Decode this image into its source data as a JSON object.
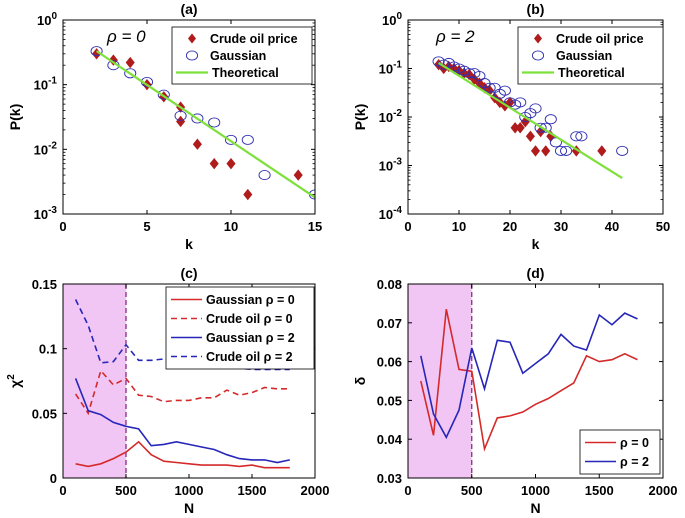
{
  "colors": {
    "crude_marker": "#b01c1c",
    "gaussian_marker": "#2f2fb0",
    "theoretical_line": "#7ee03a",
    "red_line": "#d42a2a",
    "blue_line": "#2626b8",
    "shade": "#f1c6f5",
    "divider": "#8a2a8a"
  },
  "chart_data": [
    {
      "id": "a",
      "type": "scatter",
      "title": "(a)",
      "annotation": "ρ = 0",
      "xlabel": "k",
      "ylabel": "P(k)",
      "xlim": [
        0,
        15
      ],
      "ylim": [
        0.001,
        1
      ],
      "yscale": "log",
      "xticks": [
        0,
        5,
        10,
        15
      ],
      "yticks": [
        {
          "value": 1,
          "base": "10",
          "exp": "0"
        },
        {
          "value": 0.1,
          "base": "10",
          "exp": "-1"
        },
        {
          "value": 0.01,
          "base": "10",
          "exp": "-2"
        },
        {
          "value": 0.001,
          "base": "10",
          "exp": "-3"
        }
      ],
      "legend_position": "top-right",
      "series": [
        {
          "name": "Crude oil price",
          "style": "diamond",
          "x": [
            2,
            3,
            4,
            5,
            6,
            7,
            7,
            8,
            9,
            10,
            11,
            14
          ],
          "y": [
            0.3,
            0.24,
            0.22,
            0.1,
            0.065,
            0.027,
            0.045,
            0.012,
            0.006,
            0.006,
            0.002,
            0.004
          ]
        },
        {
          "name": "Gaussian",
          "style": "circle",
          "x": [
            2,
            3,
            4,
            5,
            6,
            7,
            8,
            9,
            10,
            11,
            12,
            15
          ],
          "y": [
            0.33,
            0.2,
            0.15,
            0.11,
            0.07,
            0.033,
            0.03,
            0.026,
            0.014,
            0.014,
            0.004,
            0.002
          ]
        },
        {
          "name": "Theoretical",
          "style": "line",
          "x": [
            2,
            15
          ],
          "y": [
            0.33,
            0.0018
          ]
        }
      ]
    },
    {
      "id": "b",
      "type": "scatter",
      "title": "(b)",
      "annotation": "ρ = 2",
      "xlabel": "k",
      "ylabel": "P(k)",
      "xlim": [
        0,
        50
      ],
      "ylim": [
        0.0001,
        1
      ],
      "yscale": "log",
      "xticks": [
        0,
        10,
        20,
        30,
        40,
        50
      ],
      "yticks": [
        {
          "value": 1,
          "base": "10",
          "exp": "0"
        },
        {
          "value": 0.1,
          "base": "10",
          "exp": "-1"
        },
        {
          "value": 0.01,
          "base": "10",
          "exp": "-2"
        },
        {
          "value": 0.001,
          "base": "10",
          "exp": "-3"
        },
        {
          "value": 0.0001,
          "base": "10",
          "exp": "-4"
        }
      ],
      "legend_position": "top-right",
      "series": [
        {
          "name": "Crude oil price",
          "style": "diamond",
          "x": [
            6,
            7,
            8,
            9,
            10,
            11,
            12,
            13,
            14,
            15,
            16,
            17,
            18,
            19,
            20,
            21,
            22,
            23,
            24,
            25,
            26,
            27,
            28,
            33,
            38
          ],
          "y": [
            0.12,
            0.1,
            0.11,
            0.1,
            0.09,
            0.08,
            0.075,
            0.06,
            0.05,
            0.04,
            0.035,
            0.025,
            0.02,
            0.017,
            0.02,
            0.006,
            0.006,
            0.008,
            0.004,
            0.002,
            0.005,
            0.002,
            0.004,
            0.002,
            0.002
          ]
        },
        {
          "name": "Gaussian",
          "style": "circle",
          "x": [
            6,
            7,
            8,
            9,
            10,
            11,
            12,
            13,
            14,
            15,
            16,
            17,
            18,
            19,
            20,
            21,
            22,
            23,
            24,
            25,
            26,
            27,
            28,
            29,
            30,
            31,
            33,
            34,
            42
          ],
          "y": [
            0.14,
            0.12,
            0.13,
            0.11,
            0.1,
            0.09,
            0.08,
            0.08,
            0.07,
            0.05,
            0.04,
            0.04,
            0.03,
            0.035,
            0.02,
            0.018,
            0.02,
            0.01,
            0.012,
            0.015,
            0.006,
            0.006,
            0.009,
            0.003,
            0.002,
            0.002,
            0.004,
            0.004,
            0.002
          ]
        },
        {
          "name": "Theoretical",
          "style": "line",
          "x": [
            6,
            42
          ],
          "y": [
            0.13,
            0.00055
          ]
        }
      ]
    },
    {
      "id": "c",
      "type": "line",
      "title": "(c)",
      "xlabel": "N",
      "ylabel": "χ",
      "ylabel_sup": "2",
      "xlim": [
        0,
        2000
      ],
      "ylim": [
        0,
        0.15
      ],
      "xticks": [
        0,
        500,
        1000,
        1500,
        2000
      ],
      "yticks": [
        0,
        0.05,
        0.1,
        0.15
      ],
      "ytick_labels": [
        "0",
        "0.05",
        "0.1",
        "0.15"
      ],
      "shade_region": [
        0,
        500
      ],
      "divider_x": 500,
      "legend_position": "top-right",
      "x": [
        100,
        200,
        300,
        400,
        500,
        600,
        700,
        800,
        900,
        1000,
        1100,
        1200,
        1300,
        1400,
        1500,
        1600,
        1700,
        1800
      ],
      "series": [
        {
          "name": "Gaussian ρ = 0",
          "color_key": "red_line",
          "dash": false,
          "values": [
            0.011,
            0.009,
            0.011,
            0.015,
            0.02,
            0.028,
            0.018,
            0.013,
            0.012,
            0.011,
            0.01,
            0.01,
            0.01,
            0.009,
            0.01,
            0.008,
            0.008,
            0.008
          ]
        },
        {
          "name": "Crude oil ρ = 0",
          "color_key": "red_line",
          "dash": true,
          "values": [
            0.065,
            0.05,
            0.083,
            0.072,
            0.077,
            0.064,
            0.063,
            0.059,
            0.06,
            0.06,
            0.062,
            0.062,
            0.068,
            0.064,
            0.066,
            0.07,
            0.069,
            0.069
          ]
        },
        {
          "name": "Gaussian ρ = 2",
          "color_key": "blue_line",
          "dash": false,
          "values": [
            0.077,
            0.052,
            0.049,
            0.043,
            0.04,
            0.038,
            0.025,
            0.026,
            0.028,
            0.026,
            0.024,
            0.022,
            0.018,
            0.015,
            0.014,
            0.014,
            0.012,
            0.014
          ]
        },
        {
          "name": "Crude oil ρ = 2",
          "color_key": "blue_line",
          "dash": true,
          "values": [
            0.138,
            0.118,
            0.089,
            0.09,
            0.103,
            0.091,
            0.091,
            0.092,
            0.087,
            0.085,
            0.085,
            0.085,
            0.085,
            0.085,
            0.084,
            0.084,
            0.084,
            0.084
          ]
        }
      ]
    },
    {
      "id": "d",
      "type": "line",
      "title": "(d)",
      "xlabel": "N",
      "ylabel": "δ",
      "xlim": [
        0,
        2000
      ],
      "ylim": [
        0.03,
        0.08
      ],
      "xticks": [
        0,
        500,
        1000,
        1500,
        2000
      ],
      "yticks": [
        0.03,
        0.04,
        0.05,
        0.06,
        0.07,
        0.08
      ],
      "ytick_labels": [
        "0.03",
        "0.04",
        "0.05",
        "0.06",
        "0.07",
        "0.08"
      ],
      "shade_region": [
        0,
        500
      ],
      "divider_x": 500,
      "legend_position": "bottom-right",
      "x": [
        100,
        200,
        300,
        400,
        500,
        600,
        700,
        800,
        900,
        1000,
        1100,
        1200,
        1300,
        1400,
        1500,
        1600,
        1700,
        1800
      ],
      "series": [
        {
          "name": "ρ = 0",
          "color_key": "red_line",
          "dash": false,
          "values": [
            0.055,
            0.041,
            0.0735,
            0.058,
            0.0575,
            0.0375,
            0.0455,
            0.046,
            0.047,
            0.049,
            0.0505,
            0.0525,
            0.0545,
            0.0615,
            0.06,
            0.0605,
            0.062,
            0.0605
          ]
        },
        {
          "name": "ρ = 2",
          "color_key": "blue_line",
          "dash": false,
          "values": [
            0.0615,
            0.0465,
            0.0405,
            0.0475,
            0.0635,
            0.053,
            0.0655,
            0.065,
            0.057,
            0.0595,
            0.062,
            0.067,
            0.064,
            0.063,
            0.072,
            0.0695,
            0.0725,
            0.071
          ]
        }
      ]
    }
  ]
}
